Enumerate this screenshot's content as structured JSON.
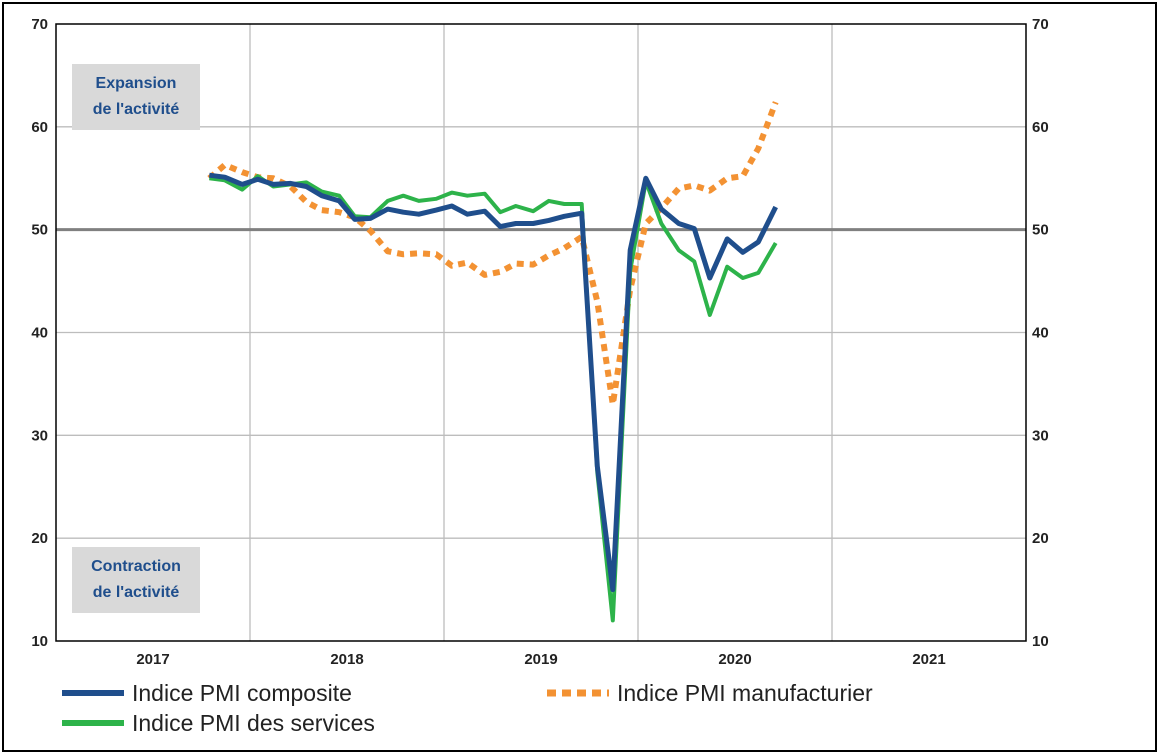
{
  "chart_data": {
    "type": "line",
    "title": "",
    "xlabel": "",
    "ylabel": "",
    "ylim": [
      10,
      70
    ],
    "xlim": [
      2017,
      2021.99
    ],
    "yticks": [
      10,
      20,
      30,
      40,
      50,
      60,
      70
    ],
    "xtick_labels": [
      "2017",
      "2018",
      "2019",
      "2020",
      "2021"
    ],
    "grid": true,
    "reference_line": 50,
    "annotations": {
      "expansion": [
        "Expansion",
        "de l'activité"
      ],
      "contraction": [
        "Contraction",
        "de l'activité"
      ]
    },
    "legend_position": "bottom",
    "series": [
      {
        "name": "Indice PMI composite",
        "color": "#1f4e8c",
        "style": "solid",
        "points": [
          [
            2017.79,
            55.3
          ],
          [
            2017.87,
            55.1
          ],
          [
            2017.96,
            54.4
          ],
          [
            2018.04,
            54.9
          ],
          [
            2018.12,
            54.4
          ],
          [
            2018.21,
            54.5
          ],
          [
            2018.29,
            54.2
          ],
          [
            2018.37,
            53.3
          ],
          [
            2018.46,
            52.8
          ],
          [
            2018.54,
            51.0
          ],
          [
            2018.62,
            51.1
          ],
          [
            2018.71,
            52.0
          ],
          [
            2018.79,
            51.7
          ],
          [
            2018.87,
            51.5
          ],
          [
            2018.96,
            51.9
          ],
          [
            2019.04,
            52.3
          ],
          [
            2019.12,
            51.5
          ],
          [
            2019.21,
            51.8
          ],
          [
            2019.29,
            50.3
          ],
          [
            2019.37,
            50.6
          ],
          [
            2019.46,
            50.6
          ],
          [
            2019.54,
            50.9
          ],
          [
            2019.62,
            51.3
          ],
          [
            2019.71,
            51.6
          ],
          [
            2019.79,
            27.0
          ],
          [
            2019.87,
            15.0
          ],
          [
            2019.96,
            48.0
          ],
          [
            2020.04,
            55.0
          ],
          [
            2020.12,
            52.0
          ],
          [
            2020.21,
            50.6
          ],
          [
            2020.29,
            50.1
          ],
          [
            2020.37,
            45.3
          ],
          [
            2020.46,
            49.1
          ],
          [
            2020.54,
            47.8
          ],
          [
            2020.62,
            48.8
          ],
          [
            2020.71,
            52.2
          ]
        ]
      },
      {
        "name": "Indice PMI manufacturier",
        "color": "#f39233",
        "style": "dotted",
        "points": [
          [
            2017.79,
            55.0
          ],
          [
            2017.87,
            56.3
          ],
          [
            2017.96,
            55.6
          ],
          [
            2018.04,
            55.1
          ],
          [
            2018.12,
            55.0
          ],
          [
            2018.21,
            54.2
          ],
          [
            2018.29,
            52.7
          ],
          [
            2018.37,
            51.9
          ],
          [
            2018.46,
            51.7
          ],
          [
            2018.54,
            51.2
          ],
          [
            2018.62,
            49.9
          ],
          [
            2018.71,
            47.9
          ],
          [
            2018.79,
            47.6
          ],
          [
            2018.87,
            47.7
          ],
          [
            2018.96,
            47.6
          ],
          [
            2019.04,
            46.5
          ],
          [
            2019.12,
            46.8
          ],
          [
            2019.21,
            45.6
          ],
          [
            2019.29,
            45.9
          ],
          [
            2019.37,
            46.7
          ],
          [
            2019.46,
            46.6
          ],
          [
            2019.54,
            47.5
          ],
          [
            2019.62,
            48.2
          ],
          [
            2019.71,
            49.3
          ],
          [
            2019.79,
            43.0
          ],
          [
            2019.87,
            33.0
          ],
          [
            2019.96,
            44.2
          ],
          [
            2020.04,
            50.6
          ],
          [
            2020.12,
            52.1
          ],
          [
            2020.21,
            54.0
          ],
          [
            2020.29,
            54.3
          ],
          [
            2020.37,
            53.8
          ],
          [
            2020.46,
            55.0
          ],
          [
            2020.54,
            55.2
          ],
          [
            2020.62,
            57.9
          ],
          [
            2020.71,
            62.4
          ]
        ]
      },
      {
        "name": "Indice PMI des services",
        "color": "#2db34a",
        "style": "solid",
        "points": [
          [
            2017.79,
            55.0
          ],
          [
            2017.87,
            54.8
          ],
          [
            2017.96,
            53.9
          ],
          [
            2018.04,
            55.2
          ],
          [
            2018.12,
            54.2
          ],
          [
            2018.21,
            54.4
          ],
          [
            2018.29,
            54.6
          ],
          [
            2018.37,
            53.7
          ],
          [
            2018.46,
            53.3
          ],
          [
            2018.54,
            51.3
          ],
          [
            2018.62,
            51.2
          ],
          [
            2018.71,
            52.8
          ],
          [
            2018.79,
            53.3
          ],
          [
            2018.87,
            52.8
          ],
          [
            2018.96,
            53.0
          ],
          [
            2019.04,
            53.6
          ],
          [
            2019.12,
            53.3
          ],
          [
            2019.21,
            53.5
          ],
          [
            2019.29,
            51.7
          ],
          [
            2019.37,
            52.3
          ],
          [
            2019.46,
            51.8
          ],
          [
            2019.54,
            52.8
          ],
          [
            2019.62,
            52.5
          ],
          [
            2019.71,
            52.5
          ],
          [
            2019.79,
            26.4
          ],
          [
            2019.87,
            12.0
          ],
          [
            2019.96,
            46.0
          ],
          [
            2020.04,
            54.7
          ],
          [
            2020.12,
            50.6
          ],
          [
            2020.21,
            48.0
          ],
          [
            2020.29,
            46.9
          ],
          [
            2020.37,
            41.7
          ],
          [
            2020.46,
            46.4
          ],
          [
            2020.54,
            45.3
          ],
          [
            2020.62,
            45.8
          ],
          [
            2020.71,
            48.7
          ]
        ]
      }
    ]
  }
}
